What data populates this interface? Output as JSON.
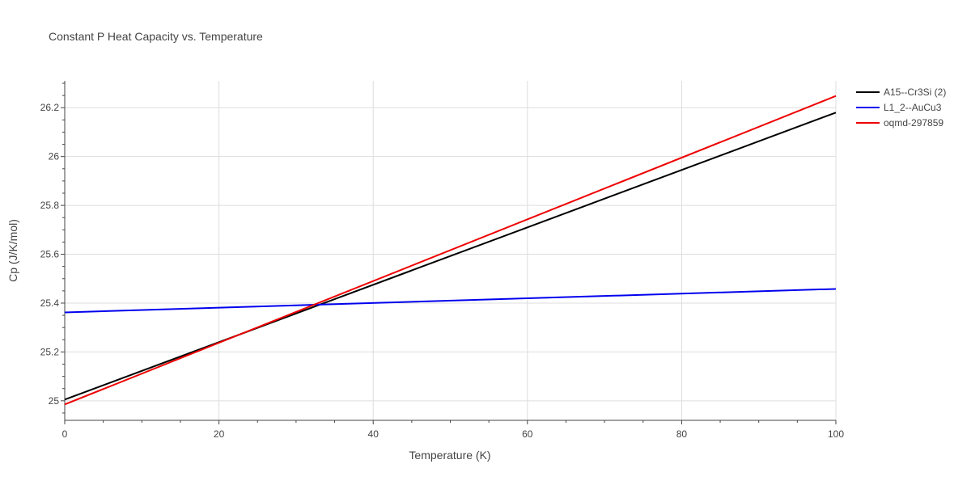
{
  "chart_data": {
    "type": "line",
    "title": "Constant P Heat Capacity vs. Temperature",
    "xlabel": "Temperature (K)",
    "ylabel": "Cp (J/K/mol)",
    "xlim": [
      0,
      100
    ],
    "ylim": [
      24.92,
      26.31
    ],
    "x_ticks": [
      0,
      20,
      40,
      60,
      80,
      100
    ],
    "x_tick_labels": [
      "0",
      "20",
      "40",
      "60",
      "80",
      "100"
    ],
    "y_ticks": [
      25,
      25.2,
      25.4,
      25.6,
      25.8,
      26,
      26.2
    ],
    "y_tick_labels": [
      "25",
      "25.2",
      "25.4",
      "25.6",
      "25.8",
      "26",
      "26.2"
    ],
    "grid": true,
    "legend_position": "right",
    "series": [
      {
        "name": "A15--Cr3Si (2)",
        "color": "#000000",
        "x": [
          0,
          100
        ],
        "y": [
          25.005,
          26.18
        ]
      },
      {
        "name": "L1_2--AuCu3",
        "color": "#0000ee",
        "x": [
          0,
          100
        ],
        "y": [
          25.362,
          25.458
        ]
      },
      {
        "name": "oqmd-297859",
        "color": "#ee0000",
        "x": [
          0,
          100
        ],
        "y": [
          24.985,
          26.248
        ]
      }
    ]
  }
}
